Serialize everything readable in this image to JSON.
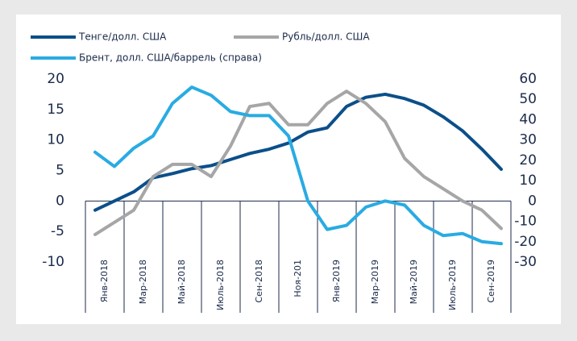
{
  "chart_data": {
    "type": "line",
    "categories": [
      "Янв-2018",
      null,
      "Мар-2018",
      null,
      "Май-2018",
      null,
      "Июль-2018",
      null,
      "Сен-2018",
      null,
      "Ноя-201",
      null,
      "Янв-2019",
      null,
      "Мар-2019",
      null,
      "Май-2019",
      null,
      "Июль-2019",
      null,
      "Сен-2019",
      null
    ],
    "series": [
      {
        "name": "Тенге/долл. США",
        "color": "#0b4f8a",
        "values": [
          -1.5,
          0,
          1.5,
          3.8,
          4.5,
          5.3,
          5.8,
          6.8,
          7.8,
          8.5,
          9.5,
          11.3,
          12,
          15.5,
          17,
          17.5,
          16.8,
          15.7,
          13.8,
          11.5,
          8.5,
          5.2
        ]
      },
      {
        "name": "Рубль/долл. США",
        "color": "#a6a6a6",
        "values": [
          -5.5,
          -3.5,
          -1.5,
          4,
          6,
          6,
          4,
          9,
          15.5,
          16,
          12.5,
          12.5,
          16,
          18,
          16,
          13,
          7,
          4,
          2,
          0,
          -1.5,
          -4.5
        ]
      },
      {
        "name": "Брент, долл. США/баррель (справа)",
        "color": "#29abe2",
        "axis": "y2",
        "values": [
          24,
          17,
          26,
          32,
          48,
          56,
          52,
          44,
          42,
          42,
          32,
          0,
          -14,
          -12,
          -3,
          0,
          -2,
          -12,
          -17,
          -16,
          -20,
          -21
        ]
      }
    ],
    "ylim": [
      -10,
      20
    ],
    "yticks": [
      -10,
      -5,
      0,
      5,
      10,
      15,
      20
    ],
    "y2lim": [
      -30,
      60
    ],
    "y2ticks": [
      -30,
      -20,
      -10,
      0,
      10,
      20,
      30,
      40,
      50,
      60
    ],
    "legend": "top"
  }
}
